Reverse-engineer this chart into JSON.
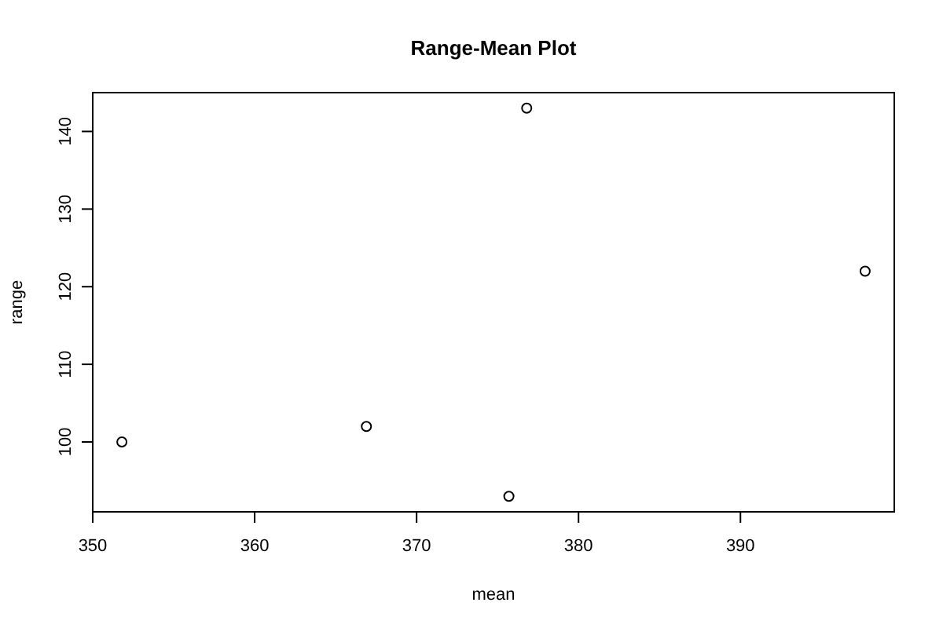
{
  "chart_data": {
    "type": "scatter",
    "title": "Range-Mean Plot",
    "xlabel": "mean",
    "ylabel": "range",
    "x": [
      351.8,
      366.9,
      375.7,
      376.8,
      397.7
    ],
    "values": [
      100,
      102,
      93,
      143,
      122
    ],
    "color": "#000000",
    "marker": "circle",
    "xlim": [
      350,
      399.5
    ],
    "ylim": [
      91,
      145
    ],
    "xticks": [
      350,
      360,
      370,
      380,
      390
    ],
    "yticks": [
      100,
      110,
      120,
      130,
      140
    ],
    "grid": false
  }
}
